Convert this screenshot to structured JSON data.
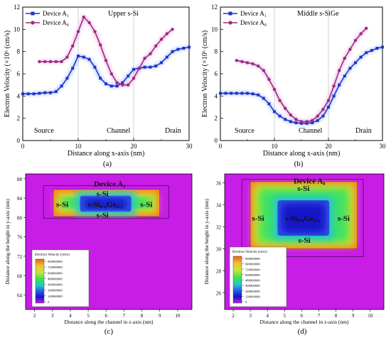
{
  "chart_data": [
    {
      "type": "line",
      "panel": "(a)",
      "xlabel": "Distance along x-axis (nm)",
      "ylabel": "Electron Velocity (×10⁶ (cm/s)",
      "xlim": [
        0,
        30
      ],
      "ylim": [
        0,
        12
      ],
      "xticks": [
        "0",
        "10",
        "20",
        "30"
      ],
      "yticks": [
        "0",
        "2",
        "4",
        "6",
        "8",
        "10",
        "12"
      ],
      "annotation": "Upper s-Si",
      "regions": [
        "Source",
        "Channel",
        "Drain"
      ],
      "region_boundaries": [
        10,
        20
      ],
      "legend_position": "top-left",
      "series": [
        {
          "name": "Device A₁",
          "color": "#1f35c9",
          "marker": "square",
          "x": [
            0,
            1,
            2,
            3,
            4,
            5,
            6,
            7,
            8,
            9,
            10,
            11,
            12,
            13,
            14,
            15,
            16,
            17,
            18,
            19,
            20,
            21,
            22,
            23,
            24,
            25,
            26,
            27,
            28,
            29,
            30
          ],
          "values": [
            4.2,
            4.2,
            4.2,
            4.25,
            4.3,
            4.3,
            4.4,
            4.9,
            5.6,
            6.5,
            7.6,
            7.5,
            7.3,
            6.6,
            5.6,
            5.1,
            4.9,
            4.9,
            5.2,
            5.8,
            6.4,
            6.5,
            6.6,
            6.6,
            6.7,
            7.0,
            7.5,
            8.0,
            8.2,
            8.3,
            8.4
          ]
        },
        {
          "name": "Device A₈",
          "color": "#9c2c7c",
          "marker": "circle",
          "x": [
            3,
            4,
            5,
            6,
            7,
            8,
            9,
            10,
            11,
            12,
            13,
            14,
            15,
            16,
            17,
            18,
            19,
            20,
            21,
            22,
            23,
            24,
            25,
            26,
            27
          ],
          "values": [
            7.1,
            7.1,
            7.1,
            7.1,
            7.1,
            7.5,
            8.5,
            9.8,
            11.1,
            10.6,
            9.8,
            8.6,
            7.2,
            6.0,
            5.2,
            5.0,
            5.0,
            5.6,
            6.5,
            7.4,
            7.8,
            8.5,
            9.1,
            9.6,
            10.0
          ]
        }
      ]
    },
    {
      "type": "line",
      "panel": "(b)",
      "xlabel": "Distance along x-axis (nm)",
      "ylabel": "Electron Velocity (×10⁶ (cm/s)",
      "xlim": [
        0,
        30
      ],
      "ylim": [
        0,
        12
      ],
      "xticks": [
        "0",
        "10",
        "20",
        "30"
      ],
      "yticks": [
        "0",
        "2",
        "4",
        "6",
        "8",
        "10",
        "12"
      ],
      "annotation": "Middle s-SiGe",
      "regions": [
        "Source",
        "Channel",
        "Drain"
      ],
      "region_boundaries": [
        10,
        20
      ],
      "legend_position": "top-left",
      "series": [
        {
          "name": "Device A₁",
          "color": "#1f35c9",
          "marker": "square",
          "x": [
            0,
            1,
            2,
            3,
            4,
            5,
            6,
            7,
            8,
            9,
            10,
            11,
            12,
            13,
            14,
            15,
            16,
            17,
            18,
            19,
            20,
            21,
            22,
            23,
            24,
            25,
            26,
            27,
            28,
            29,
            30
          ],
          "values": [
            4.25,
            4.25,
            4.25,
            4.25,
            4.25,
            4.25,
            4.2,
            4.1,
            3.8,
            3.3,
            2.6,
            2.2,
            1.9,
            1.7,
            1.6,
            1.55,
            1.55,
            1.6,
            1.8,
            2.2,
            3.0,
            4.0,
            5.0,
            5.8,
            6.5,
            7.0,
            7.5,
            7.9,
            8.1,
            8.3,
            8.4
          ]
        },
        {
          "name": "Device A₈",
          "color": "#9c2c7c",
          "marker": "circle",
          "x": [
            3,
            4,
            5,
            6,
            7,
            8,
            9,
            10,
            11,
            12,
            13,
            14,
            15,
            16,
            17,
            18,
            19,
            20,
            21,
            22,
            23,
            24,
            25,
            26,
            27
          ],
          "values": [
            7.2,
            7.1,
            7.0,
            6.9,
            6.7,
            6.3,
            5.5,
            4.6,
            3.6,
            2.9,
            2.3,
            1.9,
            1.7,
            1.7,
            1.8,
            2.2,
            2.8,
            3.6,
            4.9,
            6.3,
            7.4,
            8.2,
            9.0,
            9.6,
            10.1
          ]
        }
      ]
    },
    {
      "type": "heatmap",
      "panel": "(c)",
      "title": "Device A₁",
      "xlabel": "Distance along the channel in z-axis (nm)",
      "ylabel": "Distance along the height in y-axis (nm)",
      "xlim": [
        1.5,
        10.8
      ],
      "ylim": [
        61,
        89
      ],
      "xticks": [
        "2",
        "3",
        "4",
        "5",
        "6",
        "7",
        "8",
        "9",
        "10"
      ],
      "yticks": [
        "64",
        "68",
        "72",
        "76",
        "80",
        "84",
        "88"
      ],
      "legend_title": "Electron Velocity (cm/s)",
      "legend_values": [
        "840000000",
        "720000000",
        "600000000",
        "480000000",
        "360000000",
        "240000000",
        "120000000",
        "0"
      ],
      "region_labels": [
        "s-Si",
        "s-Si",
        "s-Si₀.₈Ge₀.₂",
        "s-Si",
        "s-Si"
      ]
    },
    {
      "type": "heatmap",
      "panel": "(d)",
      "title": "Device A₈",
      "xlabel": "Distance along the channel in z-axis (nm)",
      "ylabel": "Distance along the height in y-axis (nm)",
      "xlim": [
        1.5,
        10.8
      ],
      "ylim": [
        24.5,
        36.8
      ],
      "xticks": [
        "2",
        "3",
        "4",
        "5",
        "6",
        "7",
        "8",
        "9",
        "10"
      ],
      "yticks": [
        "26",
        "28",
        "30",
        "32",
        "34",
        "36"
      ],
      "legend_title": "Electron Velocity (cm/s)",
      "legend_values": [
        "960000000",
        "840000000",
        "720000000",
        "600000000",
        "480000000",
        "360000000",
        "240000000",
        "120000000",
        "0"
      ],
      "region_labels": [
        "s-Si",
        "s-Si",
        "s-Si₀.₈Ge₀.₂",
        "s-Si",
        "s-Si"
      ]
    }
  ]
}
